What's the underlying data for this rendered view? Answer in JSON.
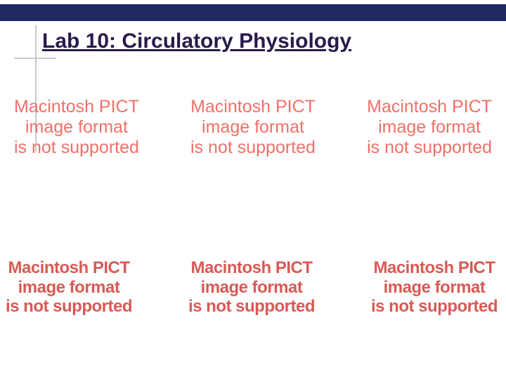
{
  "colors": {
    "bar": "#1f2a63",
    "title": "#2a1a4a",
    "pict_light": "#f07068",
    "pict_bold": "#d85a55",
    "crosshair": "#c9c9d1"
  },
  "title": "Lab 10: Circulatory Physiology",
  "pict": {
    "line1": "Macintosh PICT",
    "line2": "image format",
    "line3": "is not supported"
  },
  "row1_count": 3,
  "row2_count": 3,
  "typography": {
    "title_fontsize": 30,
    "title_weight": 700,
    "row1_fontsize": 25,
    "row1_weight": 400,
    "row2_fontsize": 24,
    "row2_weight": 700
  }
}
